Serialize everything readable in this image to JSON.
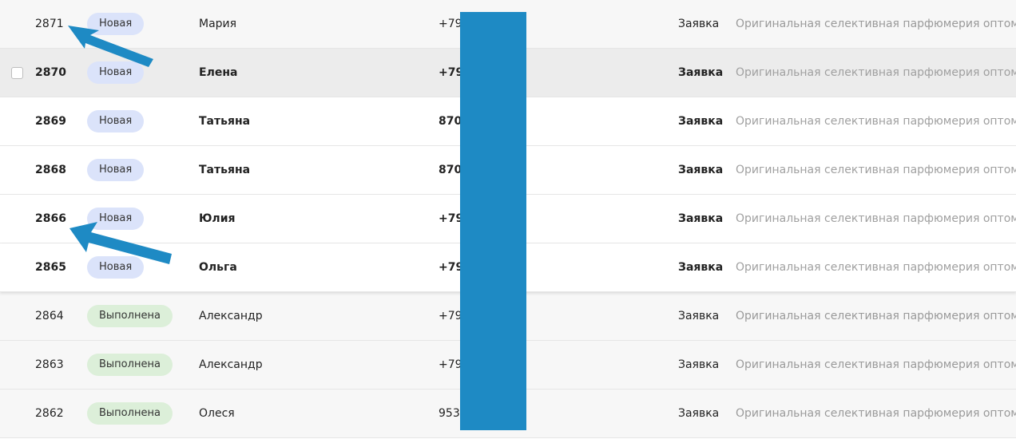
{
  "rows": [
    {
      "id": "2871",
      "status": "Новая",
      "status_kind": "new",
      "name": "Мария",
      "phone": "+79",
      "type": "Заявка",
      "desc": "Оригинальная селективная парфюмерия оптом",
      "bg": "grey",
      "bold": false,
      "checkbox": false
    },
    {
      "id": "2870",
      "status": "Новая",
      "status_kind": "new",
      "name": "Елена",
      "phone": "+79",
      "type": "Заявка",
      "desc": "Оригинальная селективная парфюмерия оптом",
      "bg": "hover",
      "bold": true,
      "checkbox": true
    },
    {
      "id": "2869",
      "status": "Новая",
      "status_kind": "new",
      "name": "Татьяна",
      "phone": "870",
      "type": "Заявка",
      "desc": "Оригинальная селективная парфюмерия оптом",
      "bg": "white",
      "bold": true,
      "checkbox": false
    },
    {
      "id": "2868",
      "status": "Новая",
      "status_kind": "new",
      "name": "Татьяна",
      "phone": "870",
      "type": "Заявка",
      "desc": "Оригинальная селективная парфюмерия оптом",
      "bg": "white",
      "bold": true,
      "checkbox": false
    },
    {
      "id": "2866",
      "status": "Новая",
      "status_kind": "new",
      "name": "Юлия",
      "phone": "+79",
      "type": "Заявка",
      "desc": "Оригинальная селективная парфюмерия оптом",
      "bg": "white",
      "bold": true,
      "checkbox": false
    },
    {
      "id": "2865",
      "status": "Новая",
      "status_kind": "new",
      "name": "Ольга",
      "phone": "+79",
      "type": "Заявка",
      "desc": "Оригинальная селективная парфюмерия оптом",
      "bg": "white",
      "bold": true,
      "checkbox": false
    },
    {
      "id": "2864",
      "status": "Выполнена",
      "status_kind": "done",
      "name": "Александр",
      "phone": "+79",
      "type": "Заявка",
      "desc": "Оригинальная селективная парфюмерия оптом",
      "bg": "grey",
      "bold": false,
      "checkbox": false
    },
    {
      "id": "2863",
      "status": "Выполнена",
      "status_kind": "done",
      "name": "Александр",
      "phone": "+79",
      "type": "Заявка",
      "desc": "Оригинальная селективная парфюмерия оптом",
      "bg": "grey",
      "bold": false,
      "checkbox": false
    },
    {
      "id": "2862",
      "status": "Выполнена",
      "status_kind": "done",
      "name": "Олеся",
      "phone": "953",
      "type": "Заявка",
      "desc": "Оригинальная селективная парфюмерия оптом",
      "bg": "grey",
      "bold": false,
      "checkbox": false
    }
  ],
  "colors": {
    "redaction": "#1e8ac4",
    "arrow": "#1e8ac4",
    "status_new_bg": "#dbe3fa",
    "status_done_bg": "#dcefd9",
    "description_text": "#9a9a9a"
  },
  "icons": [
    "checkbox-icon",
    "arrow-annotation-icon"
  ]
}
